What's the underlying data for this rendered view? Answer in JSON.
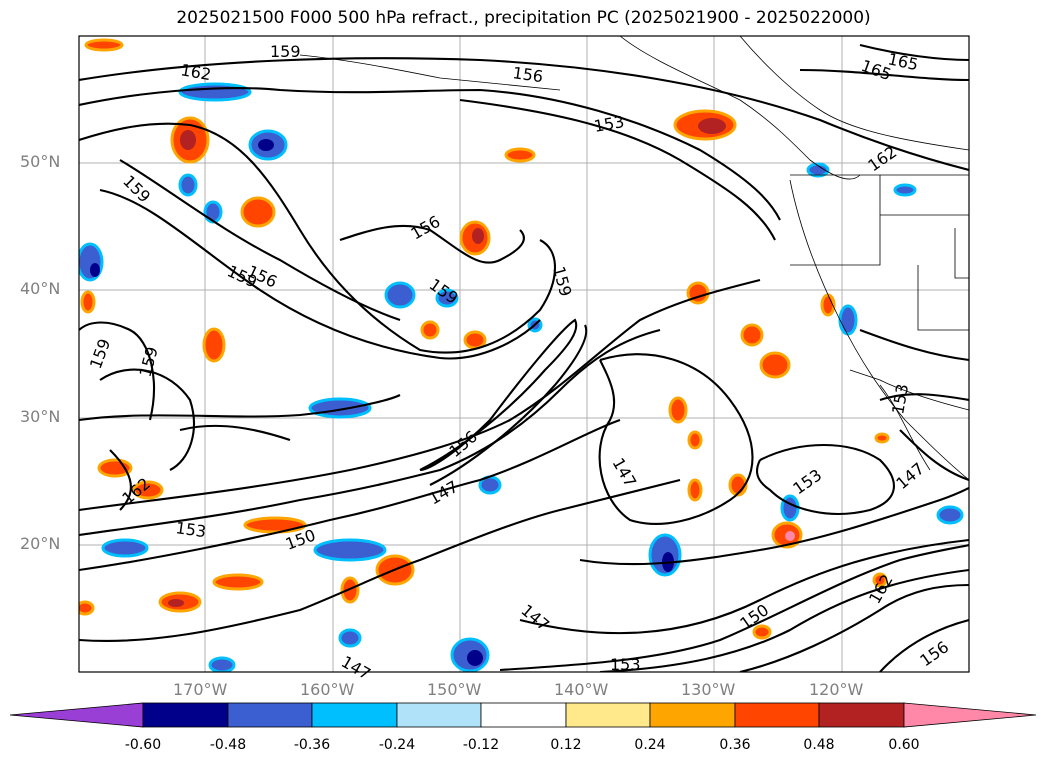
{
  "title": "2025021500 F000 500 hPa refract., precipitation PC (2025021900 - 2025022000)",
  "lat_labels": [
    "50°N",
    "40°N",
    "30°N",
    "20°N"
  ],
  "lon_labels": [
    "170°W",
    "160°W",
    "150°W",
    "140°W",
    "130°W",
    "120°W"
  ],
  "contour_labels": [
    "159",
    "162",
    "156",
    "153",
    "165",
    "165",
    "162",
    "159",
    "156",
    "159",
    "156",
    "159",
    "159",
    "159",
    "159",
    "162",
    "153",
    "150",
    "156",
    "147",
    "147",
    "153",
    "147",
    "147",
    "147",
    "153",
    "150",
    "162",
    "156",
    "153"
  ],
  "colorbar": {
    "ticks": [
      "-0.60",
      "-0.48",
      "-0.36",
      "-0.24",
      "-0.12",
      "0.12",
      "0.24",
      "0.36",
      "0.48",
      "0.60"
    ],
    "colors": {
      "under": "#9a3fd6",
      "c1": "#00008b",
      "c2": "#3b5fd0",
      "c3": "#00bfff",
      "c4": "#b0e2fa",
      "c5": "#ffffff",
      "c6": "#ffe98a",
      "c7": "#ffa500",
      "c8": "#ff4500",
      "c9": "#b22222",
      "over": "#ff88a8"
    }
  }
}
